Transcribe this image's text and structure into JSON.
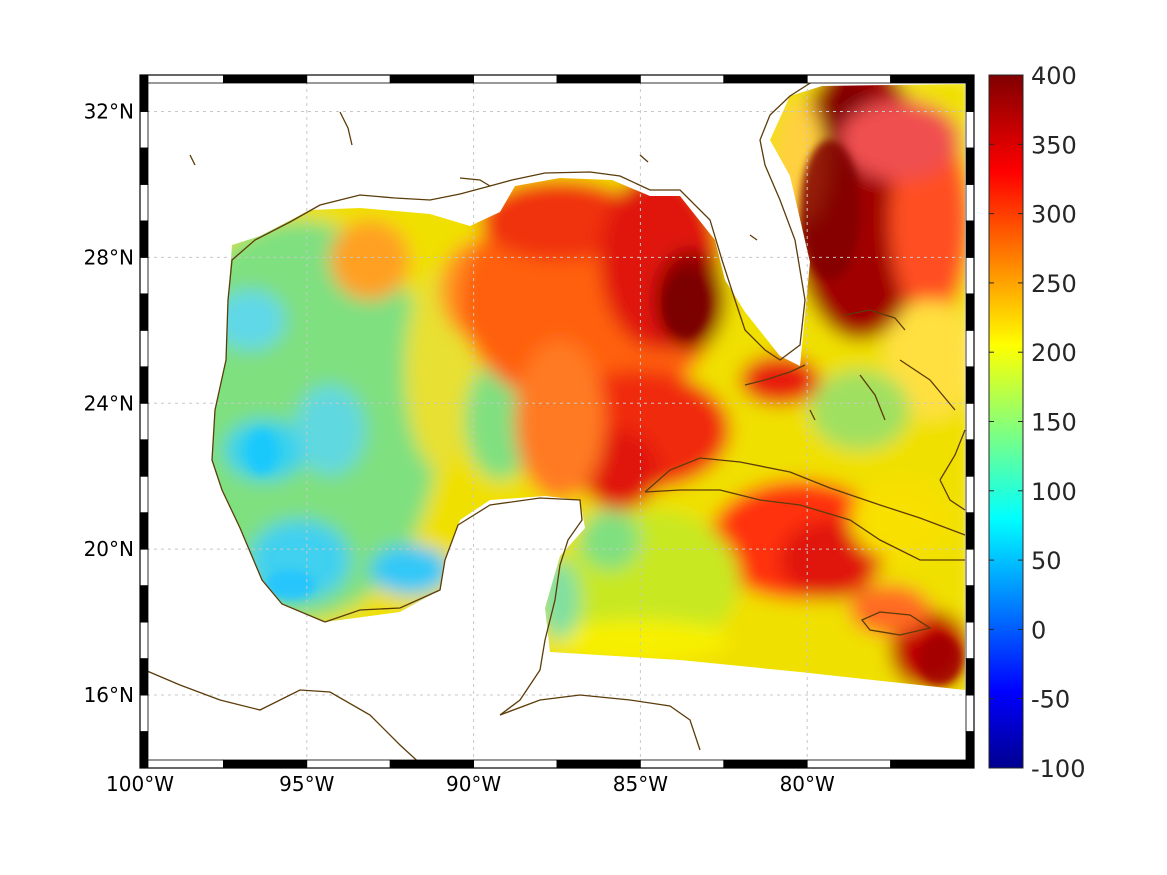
{
  "map": {
    "type": "heatmap",
    "lon_range": [
      -100,
      -75
    ],
    "lat_range": [
      14,
      33
    ],
    "lon_ticks": [
      {
        "lon": -100,
        "label": "100°W"
      },
      {
        "lon": -95,
        "label": "95°W"
      },
      {
        "lon": -90,
        "label": "90°W"
      },
      {
        "lon": -85,
        "label": "85°W"
      },
      {
        "lon": -80,
        "label": "80°W"
      }
    ],
    "lat_ticks": [
      {
        "lat": 16,
        "label": "16°N"
      },
      {
        "lat": 20,
        "label": "20°N"
      },
      {
        "lat": 24,
        "label": "24°N"
      },
      {
        "lat": 28,
        "label": "28°N"
      },
      {
        "lat": 32,
        "label": "32°N"
      }
    ],
    "grid": true,
    "colormap": "jet",
    "coast_color": "#5c3c0a",
    "frame_colors": [
      "#000000",
      "#ffffff"
    ]
  },
  "colorbar": {
    "vmin": -100,
    "vmax": 400,
    "position": "right",
    "ticks": [
      {
        "value": 400,
        "label": "400"
      },
      {
        "value": 350,
        "label": "350"
      },
      {
        "value": 300,
        "label": "300"
      },
      {
        "value": 250,
        "label": "250"
      },
      {
        "value": 200,
        "label": "200"
      },
      {
        "value": 150,
        "label": "150"
      },
      {
        "value": 100,
        "label": "100"
      },
      {
        "value": 50,
        "label": "50"
      },
      {
        "value": 0,
        "label": "0"
      },
      {
        "value": -50,
        "label": "-50"
      },
      {
        "value": -100,
        "label": "-100"
      }
    ]
  }
}
